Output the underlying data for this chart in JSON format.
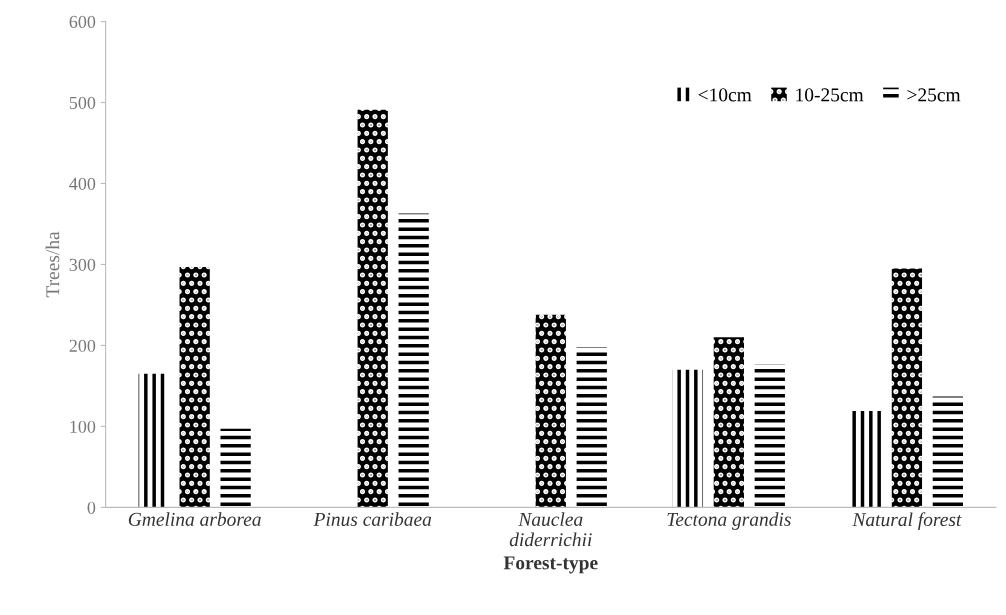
{
  "chart_data": {
    "type": "bar",
    "xlabel": "Forest-type",
    "ylabel": "Trees/ha",
    "categories": [
      "Gmelina arborea",
      "Pinus caribaea",
      "Nauclea\ndiderrichii",
      "Tectona grandis",
      "Natural forest"
    ],
    "series": [
      {
        "name": "<10cm",
        "color": "#000000",
        "values": [
          165,
          null,
          null,
          170,
          119
        ]
      },
      {
        "name": "10-25cm",
        "color": "#000000",
        "values": [
          297,
          491,
          238,
          210,
          295
        ]
      },
      {
        "name": ">25cm",
        "color": "#000000",
        "values": [
          97,
          363,
          198,
          177,
          137
        ]
      }
    ],
    "ylim": [
      0,
      600
    ],
    "yticks": [
      0,
      100,
      200,
      300,
      400,
      500,
      600
    ],
    "grid": false,
    "legend": "top right"
  }
}
